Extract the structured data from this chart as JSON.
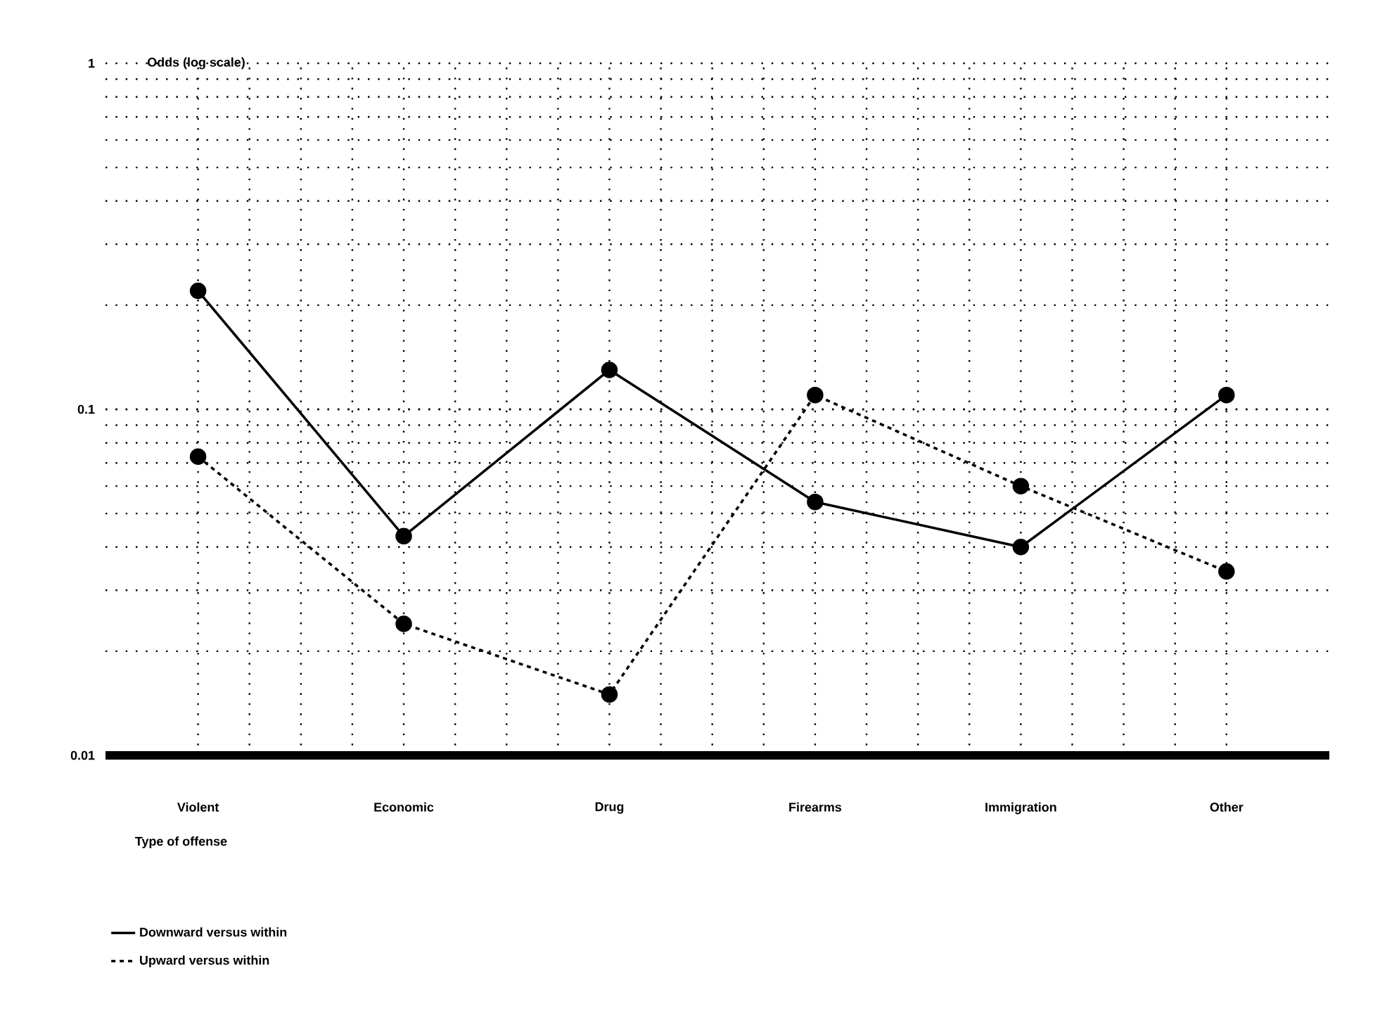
{
  "chart_data": {
    "type": "line",
    "xlabel": "Type of offense",
    "ylabel": "Odds (log scale)",
    "categories": [
      "Violent",
      "Economic",
      "Drug",
      "Firearms",
      "Immigration",
      "Other"
    ],
    "series": [
      {
        "name": "Downward versus within",
        "color": "#000000",
        "line_style": "solid",
        "values": [
          0.22,
          0.043,
          0.13,
          0.054,
          0.04,
          0.11
        ]
      },
      {
        "name": "Upward versus within",
        "color": "#000000",
        "line_style": "dashed",
        "values": [
          0.073,
          0.024,
          0.015,
          0.11,
          0.06,
          0.034
        ]
      }
    ],
    "log": "y",
    "ylim": [
      0.01,
      1
    ],
    "yticks": [
      0.01,
      0.1,
      1
    ],
    "grid": true,
    "legend": "bottom left",
    "marker": "circle"
  }
}
